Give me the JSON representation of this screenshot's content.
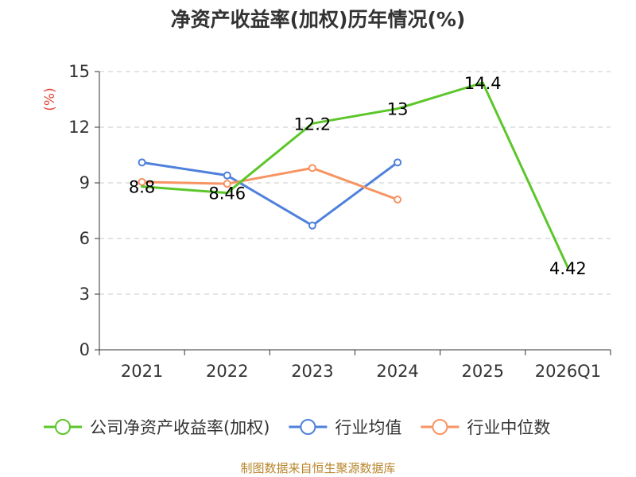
{
  "chart_data": {
    "type": "line",
    "title": "净资产收益率(加权)历年情况(%)",
    "ylabel": "(%)",
    "xlabel": "",
    "categories": [
      "2021",
      "2022",
      "2023",
      "2024",
      "2025",
      "2026Q1"
    ],
    "ylim": [
      0,
      15
    ],
    "yticks": [
      0,
      3,
      6,
      9,
      12,
      15
    ],
    "grid": true,
    "legend_position": "bottom",
    "series": [
      {
        "name": "公司净资产收益率(加权)",
        "color": "#5cc62a",
        "values": [
          8.8,
          8.46,
          12.2,
          13,
          14.4,
          4.42
        ],
        "data_labels": [
          "8.8",
          "8.46",
          "12.2",
          "13",
          "14.4",
          "4.42"
        ]
      },
      {
        "name": "行业均值",
        "color": "#4f81dc",
        "values": [
          10.1,
          9.4,
          6.7,
          10.1,
          null,
          null
        ]
      },
      {
        "name": "行业中位数",
        "color": "#f79463",
        "values": [
          9.05,
          8.95,
          9.8,
          8.1,
          null,
          null
        ]
      }
    ]
  },
  "styles": {
    "axis_color": "#333333",
    "grid_color": "#c8c8c8",
    "unit_color": "#e8463c",
    "source_color": "#b8862c"
  },
  "source": "制图数据来自恒生聚源数据库"
}
